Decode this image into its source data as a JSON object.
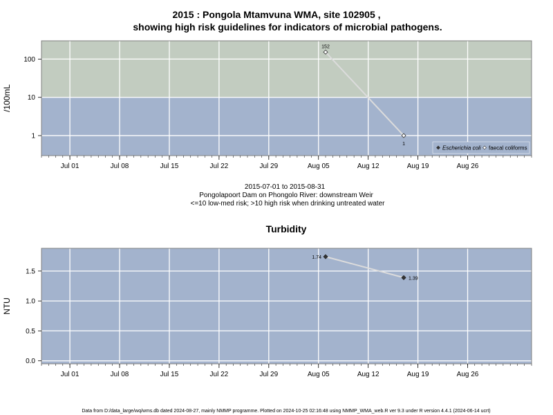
{
  "chart_data": [
    {
      "type": "line",
      "title": "2015 : Pongola Mtamvuna WMA, site 102905 ,",
      "title2": "showing high risk guidelines for indicators of microbial pathogens.",
      "ylabel": "/100mL",
      "yscale": "log",
      "ylim": [
        0.3,
        300
      ],
      "yticks": [
        1,
        10,
        100
      ],
      "ytick_labels": [
        "1",
        "10",
        "100"
      ],
      "threshold": 10,
      "colors": {
        "high_risk": "#c2ccc0",
        "low_risk": "#a3b3cd",
        "line": "#dcdcdc",
        "marker": "#ffffff"
      },
      "xlim": [
        "2015-06-27",
        "2015-09-04"
      ],
      "xticks": [
        "Jul 01",
        "Jul 08",
        "Jul 15",
        "Jul 22",
        "Jul 29",
        "Aug 05",
        "Aug 12",
        "Aug 19",
        "Aug 26"
      ],
      "series": [
        {
          "name": "Escherichia coli",
          "x": [],
          "values": []
        },
        {
          "name": "faecal coliforms",
          "x": [
            "2015-08-06",
            "2015-08-17"
          ],
          "values": [
            152,
            1
          ],
          "labels": [
            "152",
            "1"
          ]
        }
      ],
      "legend": "bottom-right"
    },
    {
      "type": "line",
      "title": "Turbidity",
      "ylabel": "NTU",
      "ylim": [
        -0.05,
        1.88
      ],
      "yticks": [
        0,
        0.5,
        1,
        1.5
      ],
      "ytick_labels": [
        "0.0",
        "0.5",
        "1.0",
        "1.5"
      ],
      "colors": {
        "background": "#a3b3cd",
        "line": "#dcdcdc",
        "marker": "#333333"
      },
      "xlim": [
        "2015-06-27",
        "2015-09-04"
      ],
      "xticks": [
        "Jul 01",
        "Jul 08",
        "Jul 15",
        "Jul 22",
        "Jul 29",
        "Aug 05",
        "Aug 12",
        "Aug 19",
        "Aug 26"
      ],
      "series": [
        {
          "x": [
            "2015-08-06",
            "2015-08-17"
          ],
          "values": [
            1.74,
            1.39
          ],
          "labels": [
            "1.74",
            "1.39"
          ]
        }
      ]
    }
  ],
  "subtitle": {
    "line1": "2015-07-01 to 2015-08-31",
    "line2": "Pongolapoort Dam on Phongolo River: downstream Weir",
    "line3": "<=10 low-med risk; >10 high risk when drinking untreated water"
  },
  "footer": "Data from D:/data_large/wq/wms.db dated 2024-08-27, mainly NMMP programme. Plotted on 2024-10-25 02:16:48 using NMMP_WMA_web.R ver 9.3 under R version 4.4.1 (2024-06-14 ucrt)"
}
